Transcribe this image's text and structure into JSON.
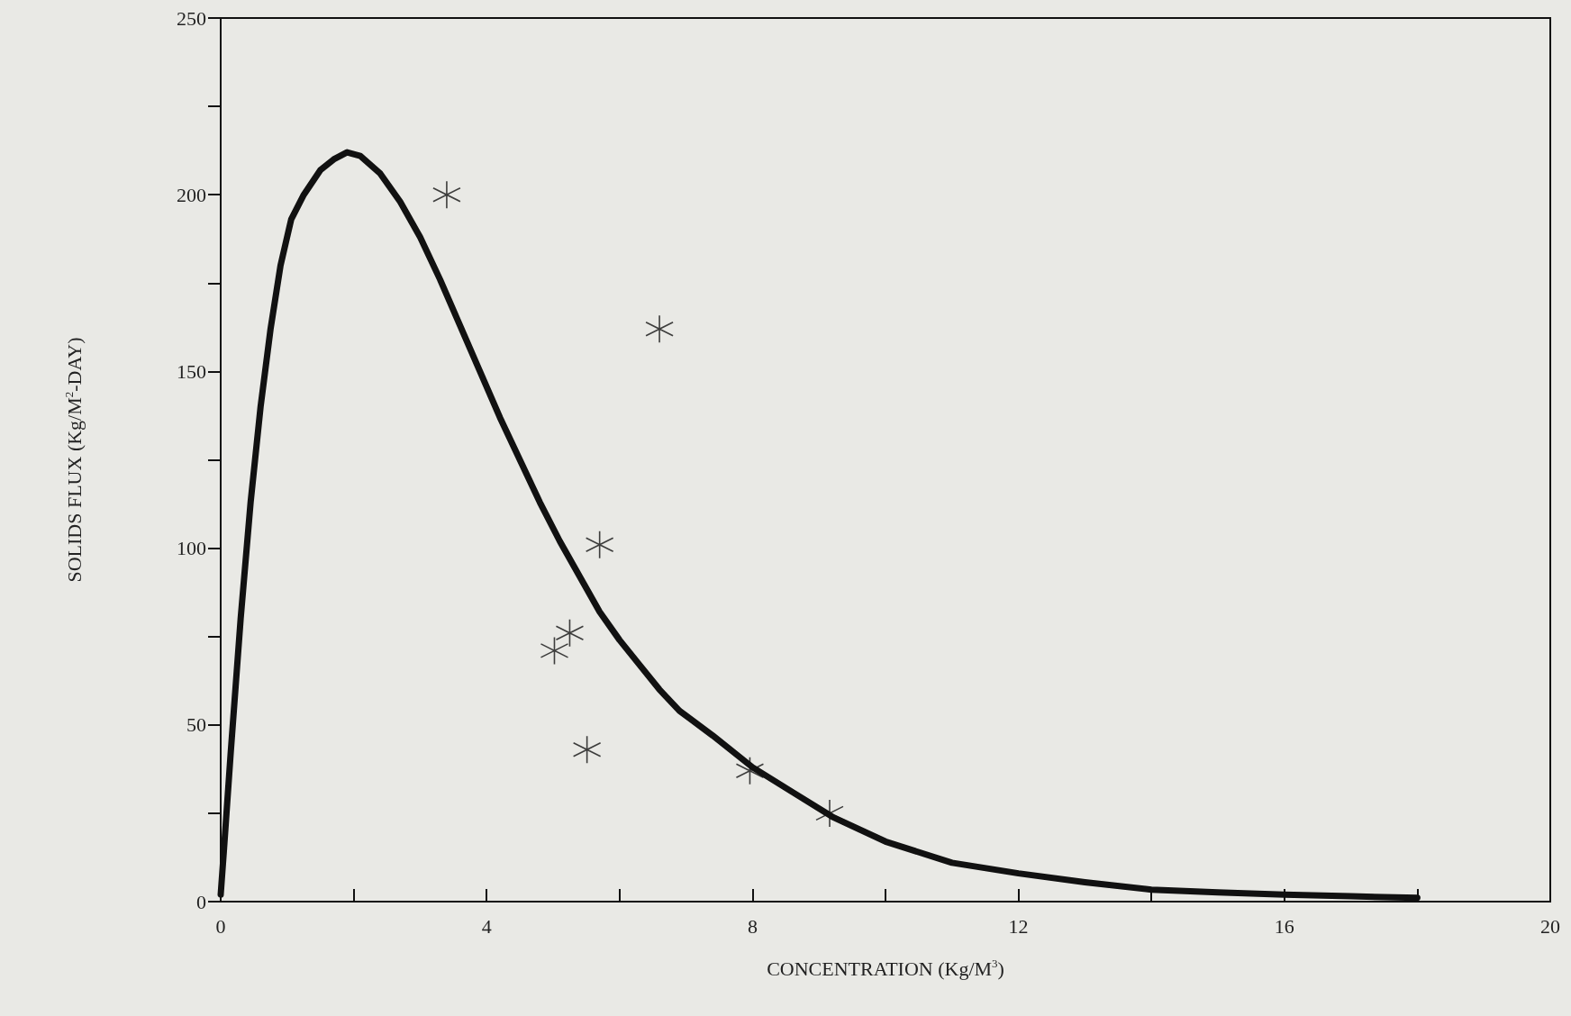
{
  "chart_data": {
    "type": "line",
    "xlabel": "CONCENTRATION (Kg/M$^{3}$)",
    "ylabel": "SOLIDS FLUX (Kg/M$^{2}$-DAY)",
    "xlim": [
      0,
      20
    ],
    "xticks": [
      0,
      {
        "value": 2,
        "label": null
      },
      4,
      {
        "value": 6,
        "label": null
      },
      8,
      {
        "value": 10,
        "label": null
      },
      12,
      {
        "value": 14,
        "label": null
      },
      16,
      {
        "value": 18,
        "label": null
      },
      20
    ],
    "ylim": [
      0,
      250
    ],
    "yticks": [
      0,
      {
        "value": 25,
        "label": null
      },
      50,
      {
        "value": 75,
        "label": null
      },
      100,
      {
        "value": 125,
        "label": null
      },
      150,
      {
        "value": 175,
        "label": null
      },
      200,
      {
        "value": 225,
        "label": null
      },
      250
    ],
    "grid": false,
    "series": [
      {
        "color": "#111111",
        "marker": "none",
        "line_style": "solid",
        "x": [
          0,
          0.05,
          0.15,
          0.3,
          0.45,
          0.6,
          0.75,
          0.9,
          1.06,
          1.25,
          1.5,
          1.7,
          1.9,
          2.1,
          2.4,
          2.7,
          3.0,
          3.3,
          3.6,
          3.9,
          4.2,
          4.5,
          4.8,
          5.1,
          5.4,
          5.7,
          6.0,
          6.3,
          6.6,
          6.9,
          7.4,
          8,
          8.6,
          9.2,
          10,
          11,
          12,
          13,
          14,
          15,
          16,
          17,
          18
        ],
        "values": [
          2,
          15,
          42,
          80,
          113,
          140,
          162,
          180,
          193,
          200,
          207,
          210,
          212,
          211,
          206,
          198,
          188,
          176,
          163,
          150,
          137,
          125,
          113,
          102,
          92,
          82,
          74,
          67,
          60,
          54,
          47,
          38,
          31,
          24,
          17,
          11,
          8,
          5.5,
          3.4,
          2.6,
          2,
          1.5,
          1.1
        ]
      },
      {
        "type": "scatter",
        "color": "#111111",
        "marker": "cross",
        "x": [
          3.4,
          6.6,
          5.7,
          5.25,
          5.02,
          5.51,
          7.96,
          9.16
        ],
        "values": [
          200,
          162,
          101,
          76,
          71,
          43,
          37,
          25
        ]
      }
    ]
  }
}
